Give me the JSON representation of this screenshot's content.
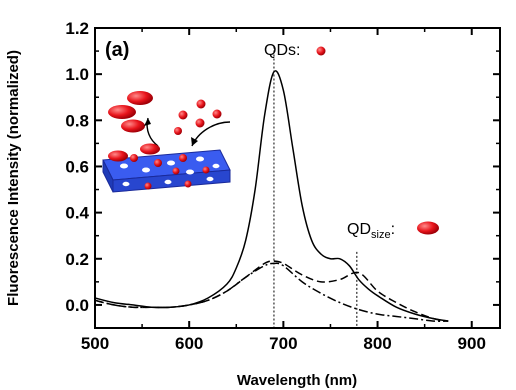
{
  "chart_data": {
    "type": "line",
    "panel_label": "(a)",
    "xlabel": "Wavelength (nm)",
    "ylabel": "Fluorescence Intensity (normalized)",
    "xlim": [
      500,
      930
    ],
    "ylim": [
      -0.1,
      1.2
    ],
    "x_ticks": [
      500,
      600,
      700,
      800,
      900
    ],
    "x_tick_labels": [
      "500",
      "600",
      "700",
      "800",
      "900"
    ],
    "y_ticks": [
      0.0,
      0.2,
      0.4,
      0.6,
      0.8,
      1.0,
      1.2
    ],
    "y_tick_labels": [
      "0.0",
      "0.2",
      "0.4",
      "0.6",
      "0.8",
      "1.0",
      "1.2"
    ],
    "series": [
      {
        "style": "solid",
        "x": [
          500,
          520,
          540,
          560,
          580,
          600,
          620,
          640,
          650,
          660,
          670,
          680,
          690,
          700,
          710,
          720,
          730,
          740,
          750,
          760,
          770,
          780,
          790,
          800,
          820,
          840,
          860,
          875
        ],
        "y": [
          0.03,
          0.01,
          0.0,
          -0.01,
          -0.01,
          0.0,
          0.03,
          0.09,
          0.16,
          0.28,
          0.5,
          0.82,
          1.01,
          0.93,
          0.68,
          0.43,
          0.28,
          0.22,
          0.2,
          0.2,
          0.17,
          0.11,
          0.07,
          0.04,
          -0.01,
          -0.04,
          -0.06,
          -0.07
        ]
      },
      {
        "style": "dashed",
        "x": [
          500,
          520,
          540,
          560,
          580,
          600,
          620,
          640,
          660,
          680,
          690,
          700,
          720,
          740,
          760,
          780,
          800,
          820,
          840,
          860,
          875
        ],
        "y": [
          0.02,
          0.0,
          -0.01,
          -0.01,
          -0.01,
          0.0,
          0.02,
          0.06,
          0.12,
          0.18,
          0.19,
          0.18,
          0.13,
          0.1,
          0.11,
          0.14,
          0.06,
          0.01,
          -0.03,
          -0.06,
          -0.07
        ]
      },
      {
        "style": "dash-dot",
        "x": [
          500,
          520,
          540,
          560,
          580,
          600,
          620,
          640,
          660,
          680,
          690,
          700,
          720,
          740,
          760,
          780,
          800,
          820,
          840,
          860,
          875
        ],
        "y": [
          0.02,
          0.0,
          -0.01,
          -0.01,
          -0.01,
          0.0,
          0.02,
          0.06,
          0.12,
          0.17,
          0.18,
          0.17,
          0.1,
          0.05,
          0.01,
          -0.02,
          -0.04,
          -0.05,
          -0.06,
          -0.07,
          -0.07
        ]
      }
    ],
    "reference_lines": [
      {
        "x": 690,
        "style": "dotted",
        "label": "QDs:",
        "marker": "small-red-dot"
      },
      {
        "x": 778,
        "style": "dotted",
        "label_main": "QD",
        "label_sub": "size",
        "label_tail": ":",
        "marker": "large-red-ellipse"
      }
    ],
    "grid": false,
    "legend": "none",
    "colors": {
      "curves": "#000000",
      "qd": "#e8141b",
      "substrate": "#2a4bd8"
    }
  }
}
